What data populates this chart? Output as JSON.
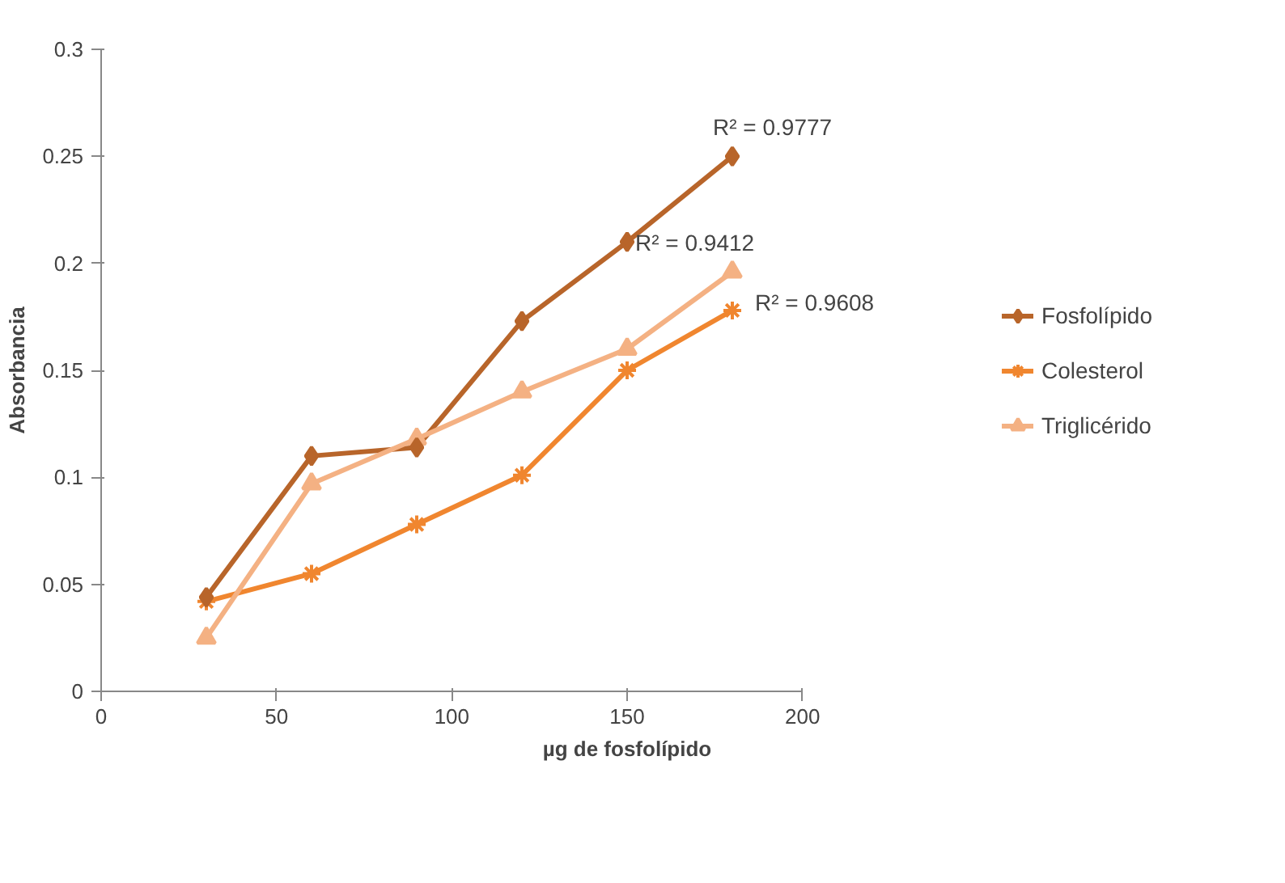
{
  "chart_data": {
    "type": "line",
    "xlabel": "µg de fosfolípido",
    "ylabel": "Absorbancia",
    "xlim": [
      0,
      200
    ],
    "xticks": [
      0,
      50,
      100,
      150,
      200
    ],
    "ylim": [
      0,
      0.3
    ],
    "yticks": [
      0,
      0.05,
      0.1,
      0.15,
      0.2,
      0.25,
      0.3
    ],
    "x": [
      30,
      60,
      90,
      120,
      150,
      180
    ],
    "series": [
      {
        "name": "Fosfolípido",
        "color": "#b8652a",
        "marker": "diamond",
        "values": [
          0.044,
          0.11,
          0.114,
          0.173,
          0.21,
          0.25
        ]
      },
      {
        "name": "Colesterol",
        "color": "#f0862f",
        "marker": "cross",
        "values": [
          0.042,
          0.055,
          0.078,
          0.101,
          0.15,
          0.178
        ]
      },
      {
        "name": "Triglicérido",
        "color": "#f4b183",
        "marker": "triangle",
        "values": [
          0.025,
          0.097,
          0.118,
          0.14,
          0.16,
          0.196
        ]
      }
    ],
    "annotations": [
      "R² = 0.9777",
      "R² = 0.9412",
      "R² = 0.9608"
    ],
    "grid": false,
    "legend": "right"
  }
}
